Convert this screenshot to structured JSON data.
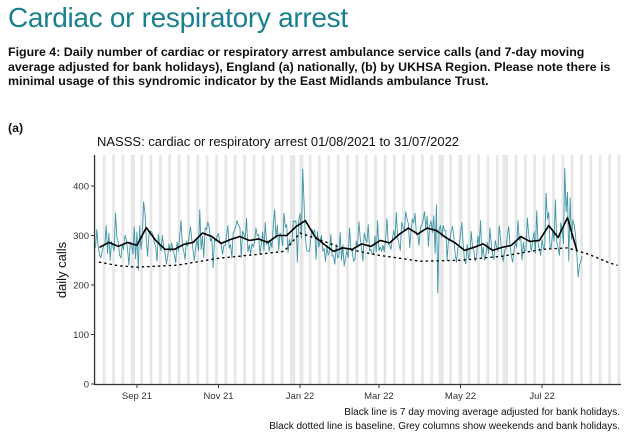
{
  "page": {
    "title": "Cardiac or respiratory arrest",
    "caption": "Figure 4: Daily number of cardiac or respiratory arrest ambulance service calls (and 7-day moving average adjusted for bank holidays), England (a) nationally, (b) by UKHSA Region. Please note there is minimal usage of this syndromic indicator by the East Midlands ambulance Trust.",
    "panel_label": "(a)"
  },
  "chart_data": {
    "type": "line",
    "title": "NASSS: cardiac or respiratory arrest 01/08/2021 to 31/07/2022",
    "xlabel": "",
    "ylabel": "daily calls",
    "start_date": "2021-08-01",
    "end_date": "2022-07-31",
    "x_axis_end_date": "2022-08-28",
    "ylim": [
      0,
      462
    ],
    "yticks": [
      0,
      100,
      200,
      300,
      400
    ],
    "xticks": [
      {
        "label": "Sep 21",
        "date": "2021-09-01"
      },
      {
        "label": "Nov 21",
        "date": "2021-11-01"
      },
      {
        "label": "Jan 22",
        "date": "2022-01-01"
      },
      {
        "label": "Mar 22",
        "date": "2022-03-01"
      },
      {
        "label": "May 22",
        "date": "2022-05-01"
      },
      {
        "label": "Jul 22",
        "date": "2022-07-01"
      }
    ],
    "grid": false,
    "colors": {
      "daily": "#2a8c9c",
      "moving_average": "#000000",
      "baseline": "#000000",
      "weekend_column": "#e6e6e6"
    },
    "bank_holidays": [
      "2021-08-30",
      "2021-12-27",
      "2021-12-28",
      "2022-01-03",
      "2022-04-15",
      "2022-04-18",
      "2022-05-02",
      "2022-06-02",
      "2022-06-03"
    ],
    "series": [
      {
        "name": "Daily calls",
        "style": "teal-line",
        "weekly_anchor_dates": [
          "2021-08-01",
          "2021-08-08",
          "2021-08-15",
          "2021-08-22",
          "2021-08-29",
          "2021-09-05",
          "2021-09-12",
          "2021-09-19",
          "2021-09-26",
          "2021-10-03",
          "2021-10-10",
          "2021-10-17",
          "2021-10-24",
          "2021-10-31",
          "2021-11-07",
          "2021-11-14",
          "2021-11-21",
          "2021-11-28",
          "2021-12-05",
          "2021-12-12",
          "2021-12-19",
          "2021-12-26",
          "2022-01-02",
          "2022-01-09",
          "2022-01-16",
          "2022-01-23",
          "2022-01-30",
          "2022-02-06",
          "2022-02-13",
          "2022-02-20",
          "2022-02-27",
          "2022-03-06",
          "2022-03-13",
          "2022-03-20",
          "2022-03-27",
          "2022-04-03",
          "2022-04-10",
          "2022-04-17",
          "2022-04-24",
          "2022-05-01",
          "2022-05-08",
          "2022-05-15",
          "2022-05-22",
          "2022-05-29",
          "2022-06-05",
          "2022-06-12",
          "2022-06-19",
          "2022-06-26",
          "2022-07-03",
          "2022-07-10",
          "2022-07-17",
          "2022-07-24",
          "2022-07-31"
        ],
        "weekly_peaks": [
          312,
          320,
          345,
          300,
          318,
          368,
          300,
          300,
          285,
          330,
          318,
          352,
          318,
          304,
          320,
          330,
          335,
          315,
          326,
          352,
          345,
          330,
          434,
          312,
          300,
          302,
          306,
          315,
          328,
          322,
          330,
          334,
          346,
          348,
          345,
          348,
          340,
          320,
          318,
          326,
          308,
          330,
          315,
          320,
          318,
          330,
          336,
          350,
          385,
          372,
          436,
          322,
          300
        ],
        "weekly_troughs": [
          255,
          250,
          260,
          240,
          230,
          258,
          248,
          242,
          245,
          252,
          250,
          255,
          235,
          262,
          255,
          255,
          262,
          262,
          268,
          270,
          265,
          246,
          270,
          252,
          248,
          242,
          238,
          248,
          248,
          262,
          268,
          272,
          270,
          276,
          280,
          278,
          184,
          250,
          246,
          243,
          248,
          250,
          252,
          248,
          246,
          250,
          268,
          260,
          275,
          260,
          248,
          216,
          255
        ]
      },
      {
        "name": "7 day moving average adjusted for bank holidays",
        "style": "black-line",
        "dates": [
          "2021-08-04",
          "2021-08-11",
          "2021-08-18",
          "2021-08-25",
          "2021-09-01",
          "2021-09-08",
          "2021-09-15",
          "2021-09-22",
          "2021-09-29",
          "2021-10-06",
          "2021-10-13",
          "2021-10-20",
          "2021-10-27",
          "2021-11-03",
          "2021-11-10",
          "2021-11-17",
          "2021-11-24",
          "2021-12-01",
          "2021-12-08",
          "2021-12-15",
          "2021-12-22",
          "2021-12-29",
          "2022-01-05",
          "2022-01-12",
          "2022-01-19",
          "2022-01-26",
          "2022-02-02",
          "2022-02-09",
          "2022-02-16",
          "2022-02-23",
          "2022-03-02",
          "2022-03-09",
          "2022-03-16",
          "2022-03-23",
          "2022-03-30",
          "2022-04-06",
          "2022-04-13",
          "2022-04-20",
          "2022-04-27",
          "2022-05-04",
          "2022-05-11",
          "2022-05-18",
          "2022-05-25",
          "2022-06-01",
          "2022-06-08",
          "2022-06-15",
          "2022-06-22",
          "2022-06-29",
          "2022-07-06",
          "2022-07-13",
          "2022-07-20",
          "2022-07-27"
        ],
        "values": [
          276,
          286,
          278,
          286,
          280,
          316,
          290,
          272,
          272,
          282,
          286,
          305,
          298,
          284,
          292,
          298,
          290,
          293,
          286,
          300,
          300,
          318,
          330,
          298,
          282,
          268,
          275,
          272,
          283,
          278,
          290,
          285,
          302,
          315,
          303,
          315,
          310,
          296,
          285,
          270,
          276,
          283,
          270,
          276,
          280,
          298,
          288,
          290,
          320,
          296,
          336,
          270
        ]
      },
      {
        "name": "Baseline",
        "style": "black-dotted",
        "dates": [
          "2021-08-04",
          "2021-08-18",
          "2021-09-01",
          "2021-10-01",
          "2021-11-01",
          "2021-12-01",
          "2021-12-20",
          "2022-01-01",
          "2022-01-15",
          "2022-02-01",
          "2022-03-01",
          "2022-04-01",
          "2022-05-01",
          "2022-06-01",
          "2022-07-01",
          "2022-07-20",
          "2022-08-05",
          "2022-08-20",
          "2022-08-26"
        ],
        "values": [
          246,
          239,
          236,
          240,
          254,
          262,
          268,
          305,
          292,
          275,
          260,
          248,
          250,
          258,
          272,
          275,
          262,
          245,
          240
        ]
      }
    ]
  },
  "footnotes": [
    "Black line is 7 day moving average adjusted for bank holidays.",
    "Black dotted line is baseline. Grey columns show weekends and bank holidays."
  ]
}
